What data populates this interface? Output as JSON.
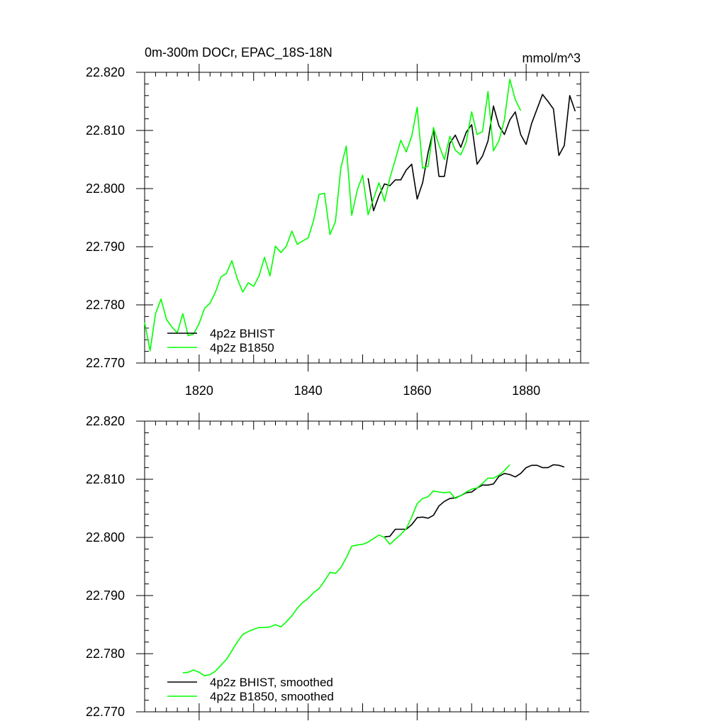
{
  "chart_data": [
    {
      "type": "line",
      "title": "0m-300m DOCr, EPAC_18S-18N",
      "units": "mmol/m^3",
      "xlim": [
        1810,
        1890
      ],
      "ylim": [
        22.77,
        22.82
      ],
      "x_ticks": [
        1820,
        1840,
        1860,
        1880
      ],
      "x_tick_labels": [
        "1820",
        "1840",
        "1860",
        "1880"
      ],
      "y_ticks": [
        22.77,
        22.78,
        22.79,
        22.8,
        22.81,
        22.82
      ],
      "y_tick_labels": [
        "22.770",
        "22.780",
        "22.790",
        "22.800",
        "22.810",
        "22.820"
      ],
      "grid": false,
      "legend_position": "bottom-left",
      "series": [
        {
          "name": "4p2z BHIST",
          "color": "#000000",
          "x": [
            1851,
            1852,
            1853,
            1854,
            1855,
            1856,
            1857,
            1858,
            1859,
            1860,
            1861,
            1862,
            1863,
            1864,
            1865,
            1866,
            1867,
            1868,
            1869,
            1870,
            1871,
            1872,
            1873,
            1874,
            1875,
            1876,
            1877,
            1878,
            1879,
            1880,
            1881,
            1882,
            1883,
            1884,
            1885,
            1886,
            1887,
            1888,
            1889
          ],
          "y": [
            22.8018,
            22.7962,
            22.7988,
            22.8008,
            22.8005,
            22.8015,
            22.8015,
            22.8032,
            22.8042,
            22.7982,
            22.801,
            22.8062,
            22.8101,
            22.8021,
            22.8021,
            22.8078,
            22.8092,
            22.8071,
            22.8097,
            22.811,
            22.8042,
            22.8056,
            22.8082,
            22.8142,
            22.8108,
            22.8093,
            22.8118,
            22.8132,
            22.8093,
            22.8076,
            22.8112,
            22.8137,
            22.8162,
            22.815,
            22.8137,
            22.8057,
            22.8074,
            22.816,
            22.8133
          ]
        },
        {
          "name": "4p2z B1850",
          "color": "#00ff00",
          "x": [
            1810,
            1811,
            1812,
            1813,
            1814,
            1815,
            1816,
            1817,
            1818,
            1819,
            1820,
            1821,
            1822,
            1823,
            1824,
            1825,
            1826,
            1827,
            1828,
            1829,
            1830,
            1831,
            1832,
            1833,
            1834,
            1835,
            1836,
            1837,
            1838,
            1839,
            1840,
            1841,
            1842,
            1843,
            1844,
            1845,
            1846,
            1847,
            1848,
            1849,
            1850,
            1851,
            1852,
            1853,
            1854,
            1855,
            1856,
            1857,
            1858,
            1859,
            1860,
            1861,
            1862,
            1863,
            1864,
            1865,
            1866,
            1867,
            1868,
            1869,
            1870,
            1871,
            1872,
            1873,
            1874,
            1875,
            1876,
            1877,
            1878,
            1879
          ],
          "y": [
            22.777,
            22.7721,
            22.7785,
            22.781,
            22.7775,
            22.7762,
            22.7752,
            22.7785,
            22.7747,
            22.775,
            22.7768,
            22.7794,
            22.7803,
            22.7822,
            22.7848,
            22.7854,
            22.7876,
            22.7845,
            22.7822,
            22.7838,
            22.7832,
            22.785,
            22.7882,
            22.785,
            22.7901,
            22.789,
            22.7901,
            22.7927,
            22.7904,
            22.791,
            22.7915,
            22.7945,
            22.799,
            22.7992,
            22.7921,
            22.7943,
            22.8036,
            22.8073,
            22.7954,
            22.7997,
            22.8023,
            22.7955,
            22.7983,
            22.801,
            22.7978,
            22.8018,
            22.805,
            22.8083,
            22.8063,
            22.809,
            22.814,
            22.8035,
            22.8038,
            22.8105,
            22.8075,
            22.805,
            22.809,
            22.8066,
            22.8058,
            22.808,
            22.8132,
            22.8093,
            22.8098,
            22.8167,
            22.8065,
            22.8082,
            22.8118,
            22.8188,
            22.8153,
            22.8134
          ]
        }
      ]
    },
    {
      "type": "line",
      "title": "",
      "xlim": [
        1810,
        1890
      ],
      "ylim": [
        22.77,
        22.82
      ],
      "x_ticks": [
        1820,
        1840,
        1860,
        1880
      ],
      "y_ticks": [
        22.77,
        22.78,
        22.79,
        22.8,
        22.81,
        22.82
      ],
      "y_tick_labels": [
        "22.770",
        "22.780",
        "22.790",
        "22.800",
        "22.810",
        "22.820"
      ],
      "grid": false,
      "legend_position": "bottom-left",
      "series": [
        {
          "name": "4p2z BHIST, smoothed",
          "color": "#000000",
          "x": [
            1854,
            1855,
            1856,
            1857,
            1858,
            1859,
            1860,
            1861,
            1862,
            1863,
            1864,
            1865,
            1866,
            1867,
            1868,
            1869,
            1870,
            1871,
            1872,
            1873,
            1874,
            1875,
            1876,
            1877,
            1878,
            1879,
            1880,
            1881,
            1882,
            1883,
            1884,
            1885,
            1886,
            1887
          ],
          "y": [
            22.8001,
            22.8002,
            22.8014,
            22.8014,
            22.8014,
            22.8022,
            22.8034,
            22.8035,
            22.8033,
            22.8038,
            22.8054,
            22.8062,
            22.8067,
            22.8068,
            22.8072,
            22.8077,
            22.8078,
            22.8085,
            22.809,
            22.809,
            22.8092,
            22.8105,
            22.811,
            22.8108,
            22.8104,
            22.811,
            22.812,
            22.8124,
            22.8124,
            22.812,
            22.812,
            22.8125,
            22.8124,
            22.8121
          ]
        },
        {
          "name": "4p2z B1850, smoothed",
          "color": "#00ff00",
          "x": [
            1817,
            1818,
            1819,
            1820,
            1821,
            1822,
            1823,
            1824,
            1825,
            1826,
            1827,
            1828,
            1829,
            1830,
            1831,
            1832,
            1833,
            1834,
            1835,
            1836,
            1837,
            1838,
            1839,
            1840,
            1841,
            1842,
            1843,
            1844,
            1845,
            1846,
            1847,
            1848,
            1849,
            1850,
            1851,
            1852,
            1853,
            1854,
            1855,
            1856,
            1857,
            1858,
            1859,
            1860,
            1861,
            1862,
            1863,
            1864,
            1865,
            1866,
            1867,
            1868,
            1869,
            1870,
            1871,
            1872,
            1873,
            1874,
            1875,
            1876,
            1877
          ],
          "y": [
            22.7767,
            22.7768,
            22.7772,
            22.7768,
            22.7762,
            22.7764,
            22.777,
            22.778,
            22.779,
            22.7805,
            22.782,
            22.7833,
            22.7838,
            22.7842,
            22.7845,
            22.7845,
            22.7846,
            22.785,
            22.7846,
            22.7855,
            22.7865,
            22.7878,
            22.7888,
            22.7895,
            22.7905,
            22.7912,
            22.7925,
            22.794,
            22.7938,
            22.7948,
            22.7965,
            22.7985,
            22.7987,
            22.7988,
            22.7992,
            22.7998,
            22.8004,
            22.8,
            22.7988,
            22.7997,
            22.8005,
            22.8015,
            22.8035,
            22.8058,
            22.8067,
            22.807,
            22.808,
            22.8078,
            22.8077,
            22.8078,
            22.8067,
            22.8072,
            22.8078,
            22.8083,
            22.8085,
            22.8093,
            22.8102,
            22.8102,
            22.8107,
            22.8115,
            22.8125
          ]
        }
      ]
    }
  ]
}
